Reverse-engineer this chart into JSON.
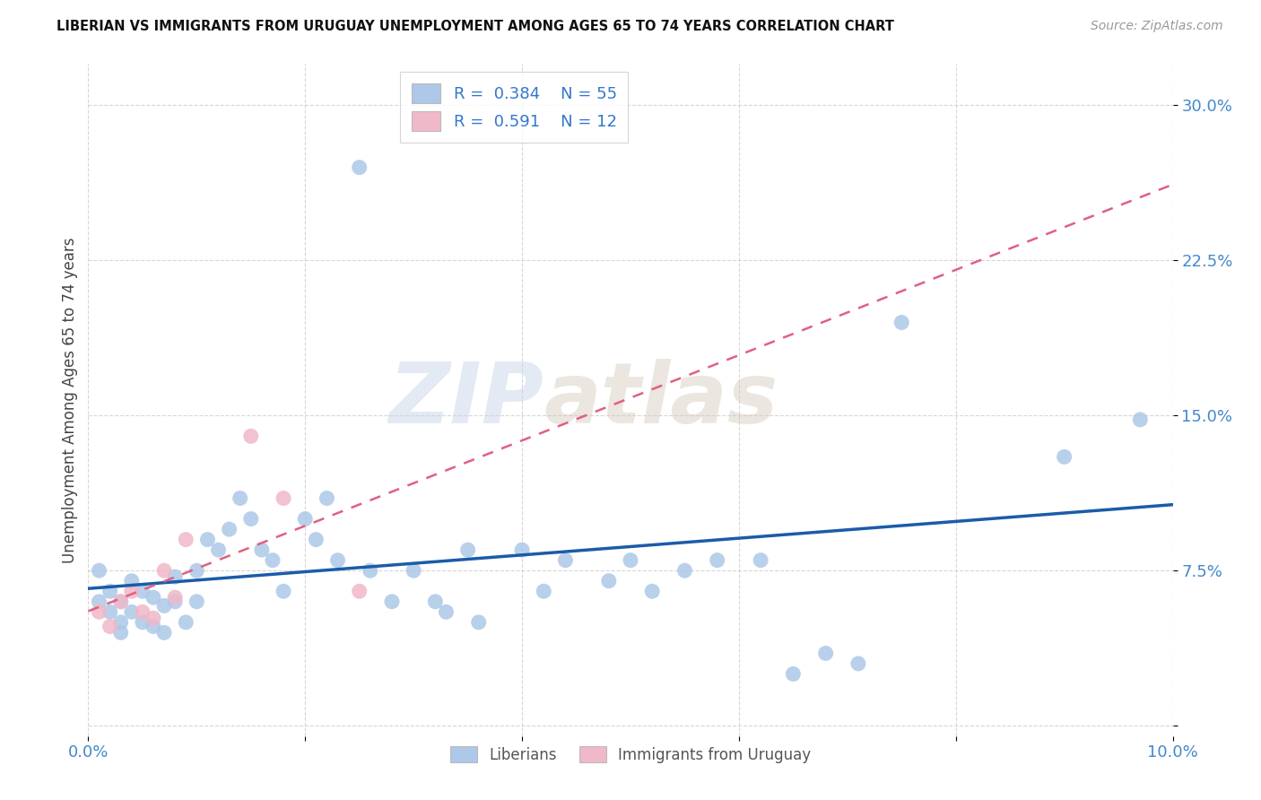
{
  "title": "LIBERIAN VS IMMIGRANTS FROM URUGUAY UNEMPLOYMENT AMONG AGES 65 TO 74 YEARS CORRELATION CHART",
  "source": "Source: ZipAtlas.com",
  "ylabel": "Unemployment Among Ages 65 to 74 years",
  "xlim": [
    0.0,
    0.1
  ],
  "ylim": [
    -0.005,
    0.32
  ],
  "xticks": [
    0.0,
    0.02,
    0.04,
    0.06,
    0.08,
    0.1
  ],
  "yticks": [
    0.0,
    0.075,
    0.15,
    0.225,
    0.3
  ],
  "xticklabels": [
    "0.0%",
    "",
    "",
    "",
    "",
    "10.0%"
  ],
  "yticklabels": [
    "",
    "7.5%",
    "15.0%",
    "22.5%",
    "30.0%"
  ],
  "liberian_R": "0.384",
  "liberian_N": "55",
  "uruguay_R": "0.591",
  "uruguay_N": "12",
  "liberian_color": "#adc8e8",
  "liberian_line_color": "#1a5ca8",
  "uruguay_color": "#f0b8c8",
  "uruguay_line_color": "#e06080",
  "liberian_x": [
    0.001,
    0.001,
    0.002,
    0.002,
    0.003,
    0.003,
    0.003,
    0.004,
    0.004,
    0.005,
    0.005,
    0.006,
    0.006,
    0.007,
    0.007,
    0.008,
    0.008,
    0.009,
    0.01,
    0.01,
    0.011,
    0.012,
    0.013,
    0.014,
    0.015,
    0.016,
    0.017,
    0.018,
    0.02,
    0.021,
    0.022,
    0.023,
    0.025,
    0.026,
    0.028,
    0.03,
    0.032,
    0.033,
    0.035,
    0.036,
    0.04,
    0.042,
    0.044,
    0.048,
    0.05,
    0.052,
    0.055,
    0.058,
    0.062,
    0.065,
    0.068,
    0.071,
    0.075,
    0.09,
    0.097
  ],
  "liberian_y": [
    0.06,
    0.075,
    0.065,
    0.055,
    0.06,
    0.05,
    0.045,
    0.07,
    0.055,
    0.065,
    0.05,
    0.062,
    0.048,
    0.058,
    0.045,
    0.072,
    0.06,
    0.05,
    0.075,
    0.06,
    0.09,
    0.085,
    0.095,
    0.11,
    0.1,
    0.085,
    0.08,
    0.065,
    0.1,
    0.09,
    0.11,
    0.08,
    0.27,
    0.075,
    0.06,
    0.075,
    0.06,
    0.055,
    0.085,
    0.05,
    0.085,
    0.065,
    0.08,
    0.07,
    0.08,
    0.065,
    0.075,
    0.08,
    0.08,
    0.025,
    0.035,
    0.03,
    0.195,
    0.13,
    0.148
  ],
  "uruguay_x": [
    0.001,
    0.002,
    0.003,
    0.004,
    0.005,
    0.006,
    0.007,
    0.008,
    0.009,
    0.015,
    0.018,
    0.025
  ],
  "uruguay_y": [
    0.055,
    0.048,
    0.06,
    0.065,
    0.055,
    0.052,
    0.075,
    0.062,
    0.09,
    0.14,
    0.11,
    0.065
  ],
  "watermark_zip": "ZIP",
  "watermark_atlas": "atlas"
}
